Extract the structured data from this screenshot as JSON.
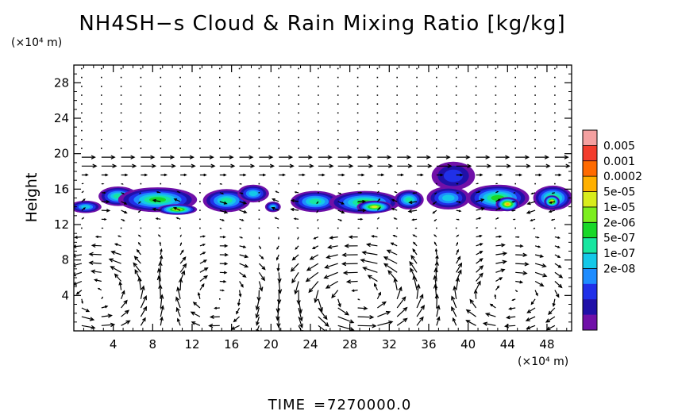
{
  "chart_data": {
    "type": "heatmap",
    "title": "NH4SH−s Cloud & Rain Mixing Ratio [kg/kg]",
    "ylabel": "Height",
    "y_unit": "(×10⁴ m)",
    "x_unit": "(×10⁴ m)",
    "xlim": [
      0,
      50.5
    ],
    "ylim": [
      0,
      30
    ],
    "x_ticks": [
      4,
      8,
      12,
      16,
      20,
      24,
      28,
      32,
      36,
      40,
      44,
      48
    ],
    "y_ticks": [
      4,
      8,
      12,
      16,
      20,
      24,
      28
    ],
    "colorbar": {
      "labels": [
        "0.005",
        "0.001",
        "0.0002",
        "5e-05",
        "1e-05",
        "2e-06",
        "5e-07",
        "1e-07",
        "2e-08"
      ],
      "colors": [
        "#f4a0a0",
        "#f23c2c",
        "#ff6a00",
        "#ffb000",
        "#d8ec1c",
        "#7cee1e",
        "#18d828",
        "#18e6a0",
        "#14c8e8",
        "#1e8cff",
        "#2030e8",
        "#2010a8",
        "#7010a8"
      ]
    },
    "cloud_patches": [
      {
        "x": 1.2,
        "y": 14.0,
        "rx": 1.6,
        "ry": 0.7,
        "level": 5
      },
      {
        "x": 4.5,
        "y": 15.2,
        "rx": 2.0,
        "ry": 1.1,
        "level": 6
      },
      {
        "x": 8.5,
        "y": 14.8,
        "rx": 4.0,
        "ry": 1.4,
        "level": 7
      },
      {
        "x": 10.5,
        "y": 13.7,
        "rx": 2.0,
        "ry": 0.6,
        "level": 9
      },
      {
        "x": 15.5,
        "y": 14.7,
        "rx": 2.4,
        "ry": 1.3,
        "level": 6
      },
      {
        "x": 18.2,
        "y": 15.5,
        "rx": 1.6,
        "ry": 1.0,
        "level": 5
      },
      {
        "x": 20.2,
        "y": 14.0,
        "rx": 0.8,
        "ry": 0.6,
        "level": 5
      },
      {
        "x": 24.5,
        "y": 14.6,
        "rx": 2.5,
        "ry": 1.2,
        "level": 6
      },
      {
        "x": 29.5,
        "y": 14.5,
        "rx": 3.6,
        "ry": 1.3,
        "level": 7
      },
      {
        "x": 30.5,
        "y": 14.0,
        "rx": 1.8,
        "ry": 0.7,
        "level": 9
      },
      {
        "x": 34.0,
        "y": 14.8,
        "rx": 1.5,
        "ry": 1.1,
        "level": 6
      },
      {
        "x": 38.5,
        "y": 17.5,
        "rx": 2.2,
        "ry": 1.6,
        "level": 3
      },
      {
        "x": 38.0,
        "y": 15.0,
        "rx": 2.2,
        "ry": 1.3,
        "level": 5
      },
      {
        "x": 43.0,
        "y": 15.0,
        "rx": 3.2,
        "ry": 1.5,
        "level": 7
      },
      {
        "x": 44.0,
        "y": 14.3,
        "rx": 1.2,
        "ry": 0.8,
        "level": 10
      },
      {
        "x": 48.6,
        "y": 15.0,
        "rx": 2.0,
        "ry": 1.4,
        "level": 7
      },
      {
        "x": 48.5,
        "y": 14.6,
        "rx": 0.8,
        "ry": 0.7,
        "level": 10
      }
    ],
    "wind_vectors": {
      "grid_dx": 2.0,
      "grid_dy": 1.0,
      "circulation_cells": [
        {
          "x": 3.0,
          "y": 4.0,
          "strength": 1.0
        },
        {
          "x": 14.0,
          "y": 4.0,
          "strength": -0.8
        },
        {
          "x": 29.0,
          "y": 4.0,
          "strength": 1.3
        },
        {
          "x": 44.0,
          "y": 4.0,
          "strength": -0.9
        }
      ],
      "upper_shear_level": 19.0
    }
  },
  "footer": {
    "time_label": "TIME",
    "time_equals": "=",
    "time_value": "7270000.0"
  }
}
